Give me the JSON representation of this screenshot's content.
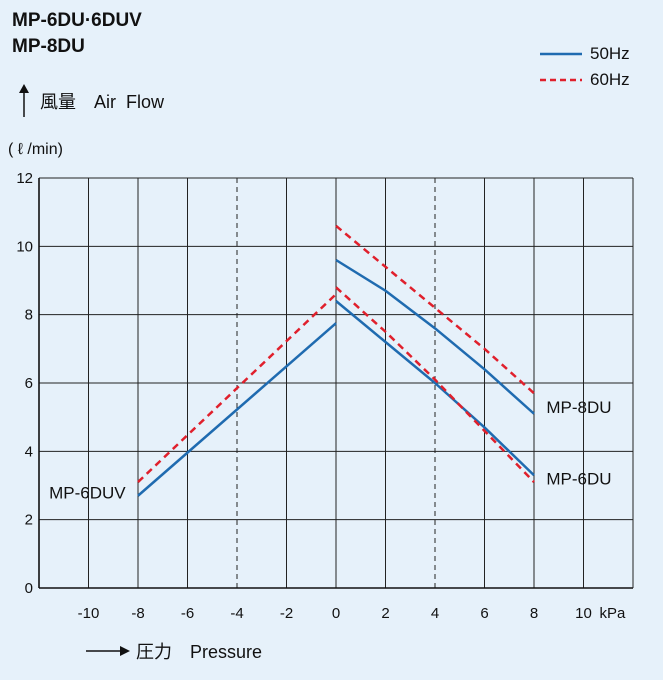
{
  "title": [
    "MP-6DU·6DUV",
    "MP-8DU"
  ],
  "legend": [
    {
      "label": "50Hz",
      "color": "#1f6bb0",
      "style": "solid"
    },
    {
      "label": "60Hz",
      "color": "#e0202c",
      "style": "dashed"
    }
  ],
  "ylabel": "風量　Air  Flow",
  "yunit": "( ℓ /min)",
  "xlabel": "圧力　Pressure",
  "xunit": "kPa",
  "chart_data": {
    "type": "line",
    "xlim": [
      -12,
      12
    ],
    "ylim": [
      0,
      12
    ],
    "xticks": [
      -10,
      -8,
      -6,
      -4,
      -2,
      0,
      2,
      4,
      6,
      8,
      10
    ],
    "yticks": [
      0,
      2,
      4,
      6,
      8,
      10,
      12
    ],
    "dashed_gridlines_x": [
      -4,
      4
    ],
    "series": [
      {
        "name": "MP-6DUV",
        "freq": "50Hz",
        "points": [
          [
            -8,
            2.7
          ],
          [
            0,
            7.75
          ]
        ]
      },
      {
        "name": "MP-6DUV",
        "freq": "60Hz",
        "points": [
          [
            -8,
            3.1
          ],
          [
            0,
            8.6
          ]
        ]
      },
      {
        "name": "MP-8DU",
        "freq": "50Hz",
        "points": [
          [
            0,
            9.6
          ],
          [
            2,
            8.7
          ],
          [
            4,
            7.6
          ],
          [
            6,
            6.4
          ],
          [
            8,
            5.1
          ]
        ]
      },
      {
        "name": "MP-8DU",
        "freq": "60Hz",
        "points": [
          [
            0,
            10.6
          ],
          [
            2,
            9.4
          ],
          [
            4,
            8.2
          ],
          [
            6,
            7.0
          ],
          [
            8,
            5.7
          ]
        ]
      },
      {
        "name": "MP-6DU",
        "freq": "50Hz",
        "points": [
          [
            0,
            8.4
          ],
          [
            2,
            7.2
          ],
          [
            4,
            6.0
          ],
          [
            6,
            4.7
          ],
          [
            8,
            3.3
          ]
        ]
      },
      {
        "name": "MP-6DU",
        "freq": "60Hz",
        "points": [
          [
            0,
            8.8
          ],
          [
            2,
            7.5
          ],
          [
            4,
            6.1
          ],
          [
            6,
            4.6
          ],
          [
            8,
            3.1
          ]
        ]
      }
    ],
    "annotations": [
      {
        "text": "MP-8DU",
        "x": 8.5,
        "y": 5.3
      },
      {
        "text": "MP-6DU",
        "x": 8.5,
        "y": 3.2
      },
      {
        "text": "MP-6DUV",
        "x": -8.5,
        "y": 2.8
      }
    ]
  }
}
